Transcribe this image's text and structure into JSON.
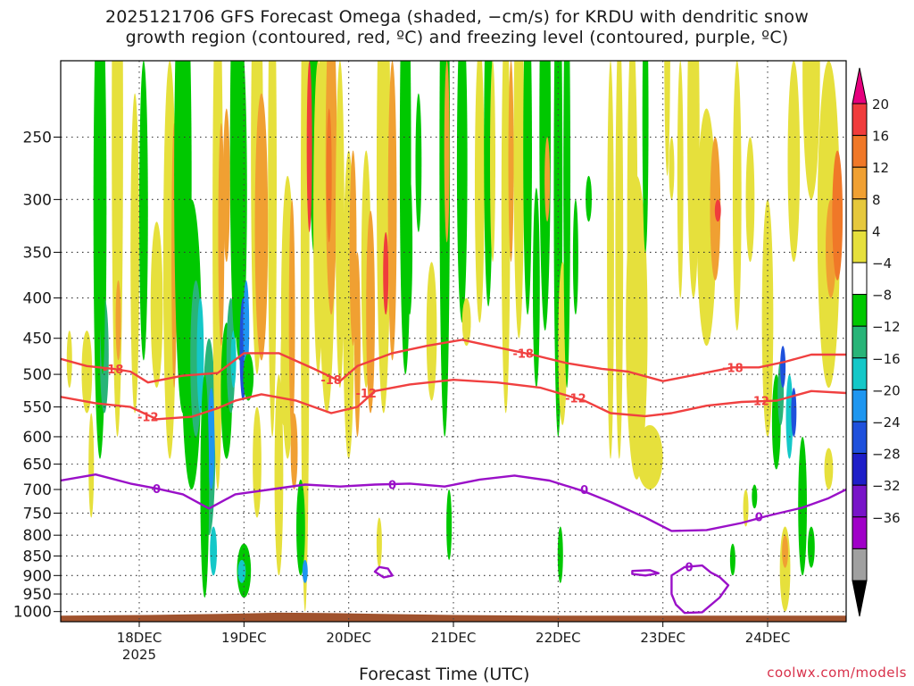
{
  "title": {
    "line1": "2025121706 GFS Forecast Omega (shaded, −cm/s) for KRDU with dendritic snow",
    "line2": "growth region (contoured, red, ºC) and freezing level (contoured, purple, ºC)"
  },
  "credit": "coolwx.com/models",
  "chart_data": {
    "type": "heatmap",
    "xlabel": "Forecast Time (UTC)",
    "ylabel": "",
    "x_ticks": [
      {
        "label": "18DEC",
        "sublabel": "2025",
        "hours": 18
      },
      {
        "label": "19DEC",
        "sublabel": "",
        "hours": 42
      },
      {
        "label": "20DEC",
        "sublabel": "",
        "hours": 66
      },
      {
        "label": "21DEC",
        "sublabel": "",
        "hours": 90
      },
      {
        "label": "22DEC",
        "sublabel": "",
        "hours": 114
      },
      {
        "label": "23DEC",
        "sublabel": "",
        "hours": 138
      },
      {
        "label": "24DEC",
        "sublabel": "",
        "hours": 162
      }
    ],
    "xlim": [
      0,
      180
    ],
    "ylim_hpa": [
      1030,
      200
    ],
    "y_scale": "log-pressure",
    "y_ticks": [
      250,
      300,
      350,
      400,
      450,
      500,
      550,
      600,
      650,
      700,
      750,
      800,
      850,
      900,
      950,
      1000
    ],
    "y_tick_labels": [
      "250",
      "300",
      "350",
      "400",
      "450",
      "500",
      "550",
      "600",
      "650",
      "700",
      "750",
      "800",
      "850",
      "900",
      "950",
      "1000"
    ],
    "grid": true,
    "colorbar": {
      "labels": [
        "20",
        "16",
        "12",
        "8",
        "4",
        "−4",
        "−8",
        "−12",
        "−16",
        "−20",
        "−24",
        "−28",
        "−32",
        "−36"
      ],
      "colors": [
        "#e6007e",
        "#f03c3c",
        "#f07828",
        "#f0a032",
        "#e6c83c",
        "#e6e03c",
        "#ffffff",
        "#00c800",
        "#28b478",
        "#14c8c8",
        "#1e96f0",
        "#1e50dc",
        "#1e1ec8",
        "#7814c8",
        "#a000c8",
        "#a0a0a0",
        "#000000"
      ]
    },
    "contours": [
      {
        "level": -18,
        "label": "-18",
        "color": "#f04040",
        "points": [
          [
            0,
            478
          ],
          [
            6,
            488
          ],
          [
            12,
            492
          ],
          [
            16,
            496
          ],
          [
            20,
            512
          ],
          [
            28,
            502
          ],
          [
            36,
            498
          ],
          [
            42,
            470
          ],
          [
            50,
            470
          ],
          [
            58,
            492
          ],
          [
            64,
            510
          ],
          [
            68,
            488
          ],
          [
            76,
            470
          ],
          [
            84,
            460
          ],
          [
            92,
            452
          ],
          [
            100,
            462
          ],
          [
            108,
            472
          ],
          [
            116,
            484
          ],
          [
            124,
            492
          ],
          [
            130,
            496
          ],
          [
            138,
            510
          ],
          [
            146,
            500
          ],
          [
            154,
            490
          ],
          [
            160,
            490
          ],
          [
            166,
            482
          ],
          [
            172,
            472
          ],
          [
            180,
            472
          ]
        ],
        "label_at": [
          [
            12,
            492
          ],
          [
            62,
            508
          ],
          [
            106,
            470
          ],
          [
            154,
            490
          ]
        ]
      },
      {
        "level": -12,
        "label": "-12",
        "color": "#f04040",
        "points": [
          [
            0,
            534
          ],
          [
            8,
            544
          ],
          [
            16,
            550
          ],
          [
            22,
            570
          ],
          [
            30,
            566
          ],
          [
            36,
            552
          ],
          [
            40,
            540
          ],
          [
            46,
            530
          ],
          [
            54,
            540
          ],
          [
            62,
            560
          ],
          [
            68,
            550
          ],
          [
            72,
            525
          ],
          [
            80,
            515
          ],
          [
            90,
            508
          ],
          [
            100,
            512
          ],
          [
            110,
            520
          ],
          [
            120,
            540
          ],
          [
            126,
            560
          ],
          [
            134,
            565
          ],
          [
            140,
            560
          ],
          [
            148,
            548
          ],
          [
            156,
            542
          ],
          [
            164,
            540
          ],
          [
            172,
            525
          ],
          [
            180,
            528
          ]
        ],
        "label_at": [
          [
            20,
            566
          ],
          [
            70,
            528
          ],
          [
            118,
            536
          ],
          [
            160,
            540
          ]
        ]
      },
      {
        "level": 0,
        "label": "0",
        "color": "#9a10c8",
        "points": [
          [
            0,
            682
          ],
          [
            8,
            670
          ],
          [
            16,
            688
          ],
          [
            22,
            698
          ],
          [
            28,
            710
          ],
          [
            34,
            740
          ],
          [
            40,
            710
          ],
          [
            48,
            700
          ],
          [
            56,
            690
          ],
          [
            64,
            694
          ],
          [
            72,
            690
          ],
          [
            80,
            688
          ],
          [
            88,
            694
          ],
          [
            96,
            680
          ],
          [
            104,
            672
          ],
          [
            112,
            682
          ],
          [
            120,
            704
          ],
          [
            126,
            726
          ],
          [
            134,
            760
          ],
          [
            140,
            790
          ],
          [
            148,
            788
          ],
          [
            156,
            772
          ],
          [
            162,
            756
          ],
          [
            170,
            738
          ],
          [
            176,
            718
          ],
          [
            180,
            700
          ]
        ],
        "label_at": [
          [
            22,
            698
          ],
          [
            76,
            690
          ],
          [
            120,
            700
          ],
          [
            160,
            758
          ]
        ]
      },
      {
        "level": 0,
        "label": "0",
        "color": "#9a10c8",
        "closed": true,
        "points": [
          [
            140,
            900
          ],
          [
            143,
            878
          ],
          [
            147,
            874
          ],
          [
            149,
            892
          ],
          [
            151,
            904
          ],
          [
            153,
            926
          ],
          [
            151,
            960
          ],
          [
            147,
            1002
          ],
          [
            143,
            1004
          ],
          [
            141,
            980
          ],
          [
            140,
            950
          ]
        ],
        "label_at": [
          [
            144,
            877
          ]
        ]
      },
      {
        "level": 0,
        "label": "",
        "color": "#9a10c8",
        "closed": true,
        "points": [
          [
            131,
            888
          ],
          [
            135,
            886
          ],
          [
            137,
            894
          ],
          [
            134,
            900
          ],
          [
            131,
            896
          ]
        ],
        "label_at": []
      },
      {
        "level": 0,
        "label": "",
        "color": "#9a10c8",
        "closed": true,
        "points": [
          [
            73,
            878
          ],
          [
            75,
            882
          ],
          [
            76,
            900
          ],
          [
            74,
            905
          ],
          [
            72,
            890
          ]
        ],
        "label_at": []
      }
    ]
  }
}
